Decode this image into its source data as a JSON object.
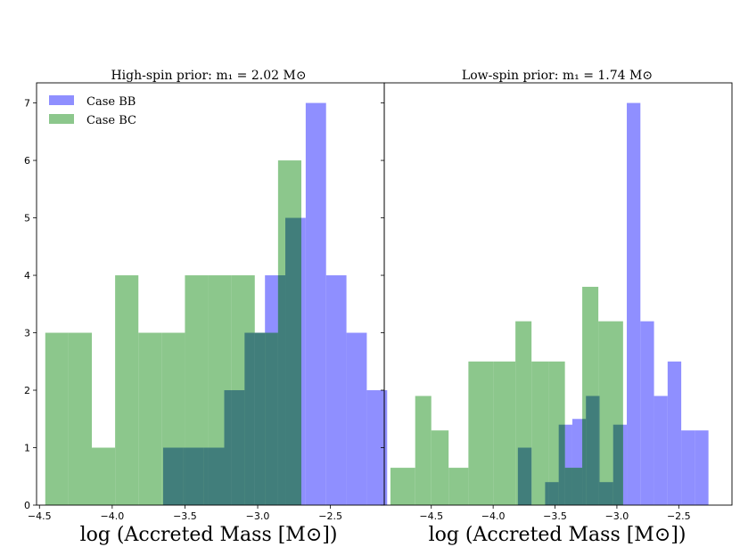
{
  "chart_data": [
    {
      "type": "bar",
      "title": "High-spin prior: m₁ = 2.02 M⊙",
      "xlabel": "log (Accreted Mass [M⊙])",
      "ylabel": "",
      "xlim": [
        -4.52,
        -2.13
      ],
      "ylim": [
        0,
        7.35
      ],
      "xticks": [
        -4.5,
        -4.0,
        -3.5,
        -3.0,
        -2.5
      ],
      "xtick_labels": [
        "−4.5",
        "−4.0",
        "−3.5",
        "−3.0",
        "−2.5"
      ],
      "yticks": [
        0,
        1,
        2,
        3,
        4,
        5,
        6,
        7
      ],
      "ytick_labels": [
        "0",
        "1",
        "2",
        "3",
        "4",
        "5",
        "6",
        "7"
      ],
      "legend_position": "top-left",
      "series": [
        {
          "name": "Case BB",
          "color": "#7b7bff",
          "bin_edges": [
            -3.65,
            -3.51,
            -3.37,
            -3.23,
            -3.09,
            -2.95,
            -2.81,
            -2.67,
            -2.53,
            -2.39,
            -2.25,
            -2.11
          ],
          "counts": [
            1,
            1,
            1,
            2,
            3,
            4,
            5,
            7,
            4,
            3,
            2
          ]
        },
        {
          "name": "Case BC",
          "color": "#7fc17f",
          "bin_edges": [
            -4.46,
            -4.3,
            -4.14,
            -3.98,
            -3.82,
            -3.66,
            -3.5,
            -3.34,
            -3.18,
            -3.02,
            -2.86,
            -2.7
          ],
          "counts": [
            3,
            3,
            1,
            4,
            3,
            3,
            4,
            4,
            4,
            3,
            6
          ]
        }
      ]
    },
    {
      "type": "bar",
      "title": "Low-spin prior: m₁ = 1.74 M⊙",
      "xlabel": "log (Accreted Mass [M⊙])",
      "ylabel": "",
      "xlim": [
        -4.88,
        -2.07
      ],
      "ylim": [
        0,
        7.35
      ],
      "xticks": [
        -4.5,
        -4.0,
        -3.5,
        -3.0,
        -2.5
      ],
      "xtick_labels": [
        "−4.5",
        "−4.0",
        "−3.5",
        "−3.0",
        "−2.5"
      ],
      "yticks": [
        0,
        1,
        2,
        3,
        4,
        5,
        6,
        7
      ],
      "ytick_labels": [],
      "series": [
        {
          "name": "Case BB",
          "color": "#7b7bff",
          "bin_edges": [
            -3.8,
            -3.69,
            -3.58,
            -3.47,
            -3.36,
            -3.25,
            -3.14,
            -3.03,
            -2.92,
            -2.81,
            -2.7,
            -2.59,
            -2.48,
            -2.37,
            -2.26
          ],
          "counts": [
            1,
            0,
            0.4,
            1.4,
            1.5,
            1.9,
            0.4,
            1.4,
            7,
            3.2,
            1.9,
            2.5,
            1.3,
            1.3
          ]
        },
        {
          "name": "Case BC",
          "color": "#7fc17f",
          "bin_edges": [
            -4.83,
            -4.63,
            -4.5,
            -4.36,
            -4.2,
            -4.0,
            -3.82,
            -3.69,
            -3.55,
            -3.42,
            -3.28,
            -3.15,
            -2.95
          ],
          "counts": [
            0.65,
            1.9,
            1.3,
            0.65,
            2.5,
            2.5,
            3.2,
            2.5,
            2.5,
            0.65,
            3.8,
            3.2
          ]
        }
      ]
    }
  ]
}
